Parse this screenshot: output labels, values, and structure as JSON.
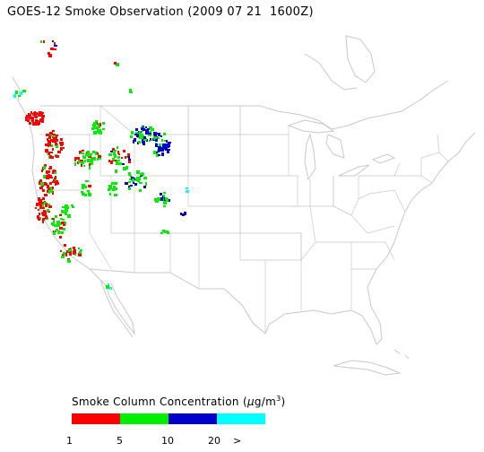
{
  "title": "GOES-12 Smoke Observation (2009 07 21  1600Z)",
  "legend": {
    "label_prefix": "Smoke Column Concentration (",
    "label_unit_mu": "μ",
    "label_unit_rest": "g/m",
    "label_unit_exp": "3",
    "label_suffix": ")",
    "bins": [
      {
        "name": "1-5",
        "color": "#ff0000"
      },
      {
        "name": "5-10",
        "color": "#00ee00"
      },
      {
        "name": "10-20",
        "color": "#0000cc"
      },
      {
        "name": ">20",
        "color": "#00ffff"
      }
    ],
    "ticks": [
      "1",
      "5",
      "10",
      "20",
      ">"
    ]
  },
  "map": {
    "region": "Continental United States",
    "linework_color": "#c8c8c8"
  }
}
